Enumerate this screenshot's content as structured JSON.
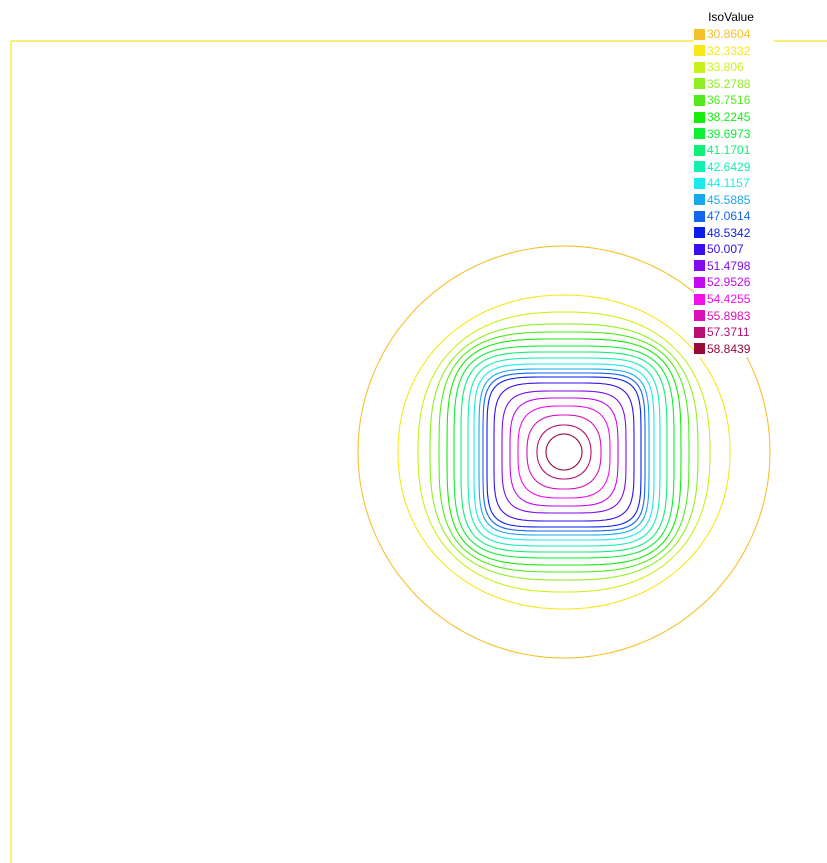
{
  "chart_data": {
    "type": "contour",
    "title": "",
    "xlabel": "",
    "ylabel": "",
    "grid": false,
    "legend": {
      "title": "IsoValue",
      "position": "top-right"
    },
    "levels": [
      {
        "value": "30.8604",
        "color": "#f5c12b"
      },
      {
        "value": "32.3332",
        "color": "#f7e81a"
      },
      {
        "value": "33.806",
        "color": "#c8f21c"
      },
      {
        "value": "35.2788",
        "color": "#8fee22"
      },
      {
        "value": "36.7516",
        "color": "#52ec1e"
      },
      {
        "value": "38.2245",
        "color": "#17ec0b"
      },
      {
        "value": "39.6973",
        "color": "#0eee35"
      },
      {
        "value": "41.1701",
        "color": "#0eef77"
      },
      {
        "value": "42.6429",
        "color": "#12efb3"
      },
      {
        "value": "44.1157",
        "color": "#18ebee"
      },
      {
        "value": "45.5885",
        "color": "#17a8ef"
      },
      {
        "value": "47.0614",
        "color": "#1466ee"
      },
      {
        "value": "48.5342",
        "color": "#0a1ded"
      },
      {
        "value": "50.007",
        "color": "#3b0cee"
      },
      {
        "value": "51.4798",
        "color": "#830aee"
      },
      {
        "value": "52.9526",
        "color": "#c20bee"
      },
      {
        "value": "54.4255",
        "color": "#f210ea"
      },
      {
        "value": "55.8983",
        "color": "#d911b6"
      },
      {
        "value": "57.3711",
        "color": "#b70f73"
      },
      {
        "value": "58.8439",
        "color": "#960b39"
      }
    ]
  }
}
